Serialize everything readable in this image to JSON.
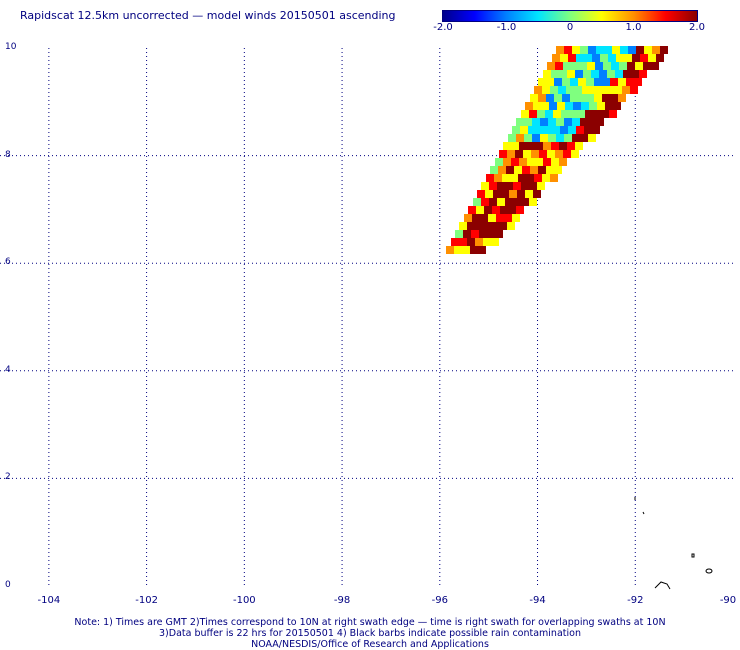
{
  "header": {
    "title": "Rapidscat 12.5km uncorrected — model winds 20150501 ascending"
  },
  "colorbar": {
    "min": -2.0,
    "max": 2.0,
    "tick_labels": [
      "-2.0",
      "-1.0",
      "0",
      "1.0",
      "2.0"
    ],
    "colors": [
      "#00008b",
      "#0000ff",
      "#0080ff",
      "#00e5ff",
      "#7fff7f",
      "#ffff00",
      "#ff9000",
      "#ff0000",
      "#8b0000"
    ]
  },
  "axes": {
    "x_tick_labels": [
      "-104",
      "-102",
      "-100",
      "-98",
      "-96",
      "-94",
      "-92",
      "-90"
    ],
    "y_tick_labels": [
      "0",
      "2",
      "4",
      "6",
      "8",
      "10"
    ],
    "xlim": [
      -105,
      -90
    ],
    "ylim": [
      0,
      10
    ]
  },
  "footer": {
    "note_line1": "Note: 1) Times are GMT 2)Times correspond to 10N at right swath edge — time is right swath for overlapping swaths at 10N",
    "note_line2": "3)Data buffer is 22 hrs for 20150501 4) Black barbs indicate possible rain contamination",
    "credit": "NOAA/NESDIS/Office of Research and Applications"
  }
}
